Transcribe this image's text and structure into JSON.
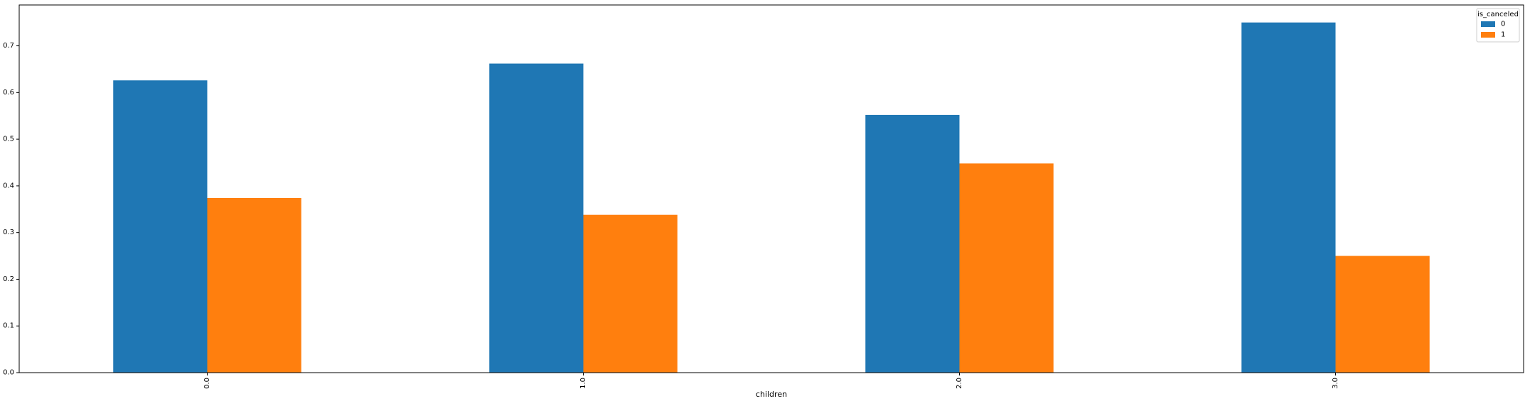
{
  "chart_data": {
    "type": "bar",
    "categories": [
      "0.0",
      "1.0",
      "2.0",
      "3.0"
    ],
    "series": [
      {
        "name": "0",
        "values": [
          0.626,
          0.662,
          0.552,
          0.75
        ],
        "color": "#1f77b4"
      },
      {
        "name": "1",
        "values": [
          0.374,
          0.338,
          0.448,
          0.25
        ],
        "color": "#ff7f0e"
      }
    ],
    "title": "",
    "xlabel": "children",
    "ylabel": "",
    "ylim": [
      0,
      0.7875
    ],
    "yticks": [
      "0.0",
      "0.1",
      "0.2",
      "0.3",
      "0.4",
      "0.5",
      "0.6",
      "0.7"
    ],
    "grid": false,
    "legend": {
      "title": "is_canceled",
      "placement": "top-right"
    }
  }
}
